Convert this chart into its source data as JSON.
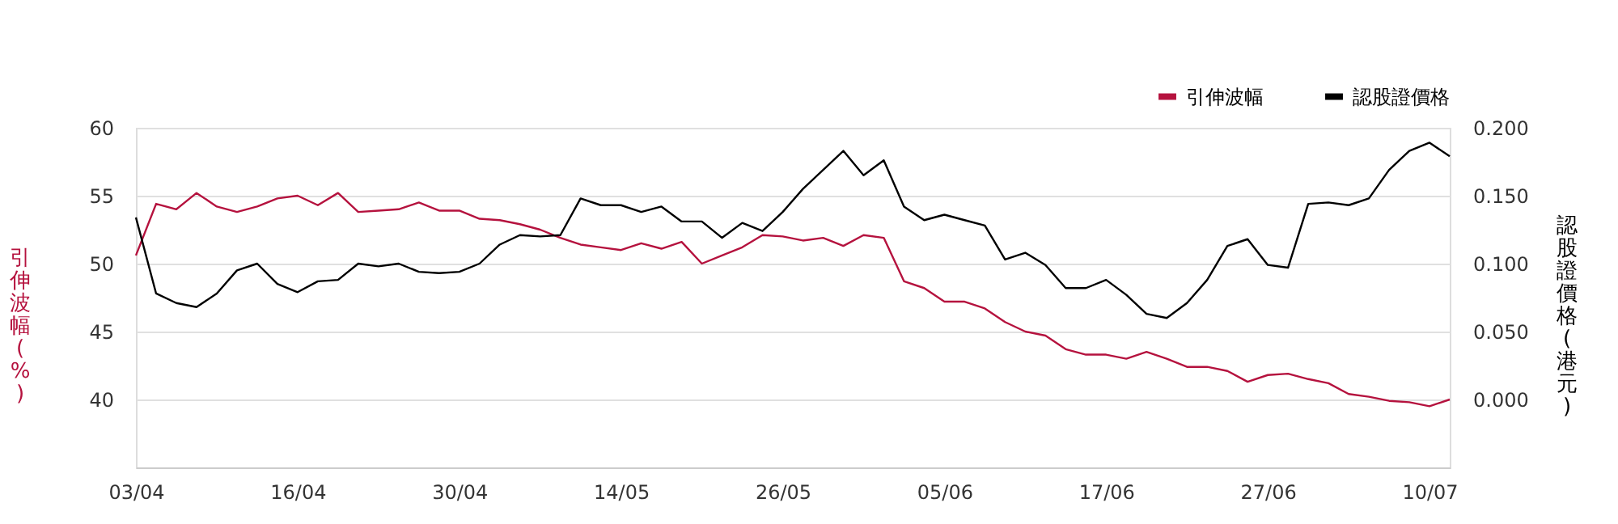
{
  "chart_data": {
    "type": "line",
    "xlabel": null,
    "ylabel": "引伸波幅(%)",
    "y2label": "認股證價格(港元)",
    "categories": [
      "03/04",
      null,
      null,
      null,
      null,
      null,
      null,
      null,
      "16/04",
      null,
      null,
      null,
      null,
      null,
      null,
      null,
      "30/04",
      null,
      null,
      null,
      null,
      null,
      null,
      null,
      "14/05",
      null,
      null,
      null,
      null,
      null,
      null,
      null,
      "26/05",
      null,
      null,
      null,
      null,
      null,
      null,
      null,
      "05/06",
      null,
      null,
      null,
      null,
      null,
      null,
      null,
      "17/06",
      null,
      null,
      null,
      null,
      null,
      null,
      null,
      "27/06",
      null,
      null,
      null,
      null,
      null,
      null,
      null,
      "10/07",
      null
    ],
    "series": [
      {
        "name": "引伸波幅",
        "color": "#b5123e",
        "values": [
          50.6,
          54.4,
          54.0,
          55.2,
          54.2,
          53.8,
          54.2,
          54.8,
          55.0,
          54.3,
          55.2,
          53.8,
          53.9,
          54.0,
          54.5,
          53.9,
          53.9,
          53.3,
          53.2,
          52.9,
          52.5,
          51.9,
          51.4,
          51.2,
          51.0,
          51.5,
          51.1,
          51.6,
          50.0,
          50.6,
          51.2,
          52.1,
          52.0,
          51.7,
          51.9,
          51.3,
          52.1,
          51.9,
          48.7,
          48.2,
          47.2,
          47.2,
          46.7,
          45.7,
          45.0,
          44.7,
          43.7,
          43.3,
          43.3,
          43.0,
          43.5,
          43.0,
          42.4,
          42.4,
          42.1,
          41.3,
          41.8,
          41.9,
          41.5,
          41.2,
          40.4,
          40.2,
          39.9,
          39.8,
          39.5,
          40.0
        ]
      },
      {
        "name": "認股證價格",
        "color": "#000000",
        "axis": "y2",
        "values": [
          0.134,
          0.078,
          0.071,
          0.068,
          0.078,
          0.095,
          0.1,
          0.085,
          0.079,
          0.087,
          0.088,
          0.1,
          0.098,
          0.1,
          0.094,
          0.093,
          0.094,
          0.1,
          0.114,
          0.121,
          0.12,
          0.121,
          0.148,
          0.143,
          0.143,
          0.138,
          0.142,
          0.131,
          0.131,
          0.119,
          0.13,
          0.124,
          0.138,
          0.155,
          0.169,
          0.183,
          0.165,
          0.176,
          0.142,
          0.132,
          0.136,
          0.132,
          0.128,
          0.103,
          0.108,
          0.099,
          0.082,
          0.082,
          0.088,
          0.077,
          0.063,
          0.06,
          0.071,
          0.088,
          0.113,
          0.118,
          0.099,
          0.097,
          0.144,
          0.145,
          0.143,
          0.148,
          0.169,
          0.183,
          0.189,
          0.179
        ]
      }
    ],
    "ylim": [
      35,
      60
    ],
    "yticks": [
      40,
      45,
      50,
      55,
      60
    ],
    "y2lim": [
      -0.05,
      0.2
    ],
    "y2ticks": [
      {
        "value": 0,
        "label": "0.000"
      },
      {
        "value": 0.05,
        "label": "0.050"
      },
      {
        "value": 0.1,
        "label": "0.100"
      },
      {
        "value": 0.15,
        "label": "0.150"
      },
      {
        "value": 0.2,
        "label": "0.200"
      }
    ],
    "grid": "y",
    "legend": "top right",
    "marker": "none",
    "line_style": "solid"
  }
}
